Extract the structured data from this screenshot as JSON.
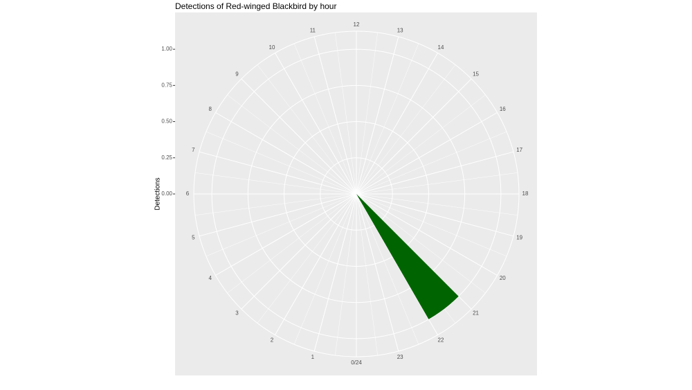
{
  "chart_data": {
    "type": "polar-bar",
    "title": "Detections of Red-winged Blackbird by hour",
    "y_label": "Detections",
    "x": [
      21
    ],
    "values": [
      1
    ],
    "color": "#006400",
    "xlim": [
      0,
      24
    ],
    "xticks": [
      {
        "value": 0,
        "label": "0/24"
      },
      1,
      2,
      3,
      4,
      5,
      6,
      7,
      8,
      9,
      10,
      11,
      12,
      13,
      14,
      15,
      16,
      17,
      18,
      19,
      20,
      21,
      22,
      23
    ],
    "ylim": [
      0,
      1.125
    ],
    "yticks": [
      {
        "value": 0,
        "label": "0.00"
      },
      {
        "value": 0.25,
        "label": "0.25"
      },
      {
        "value": 0.5,
        "label": "0.50"
      },
      {
        "value": 0.75,
        "label": "0.75"
      },
      {
        "value": 1,
        "label": "1.00"
      }
    ],
    "grid": true
  }
}
